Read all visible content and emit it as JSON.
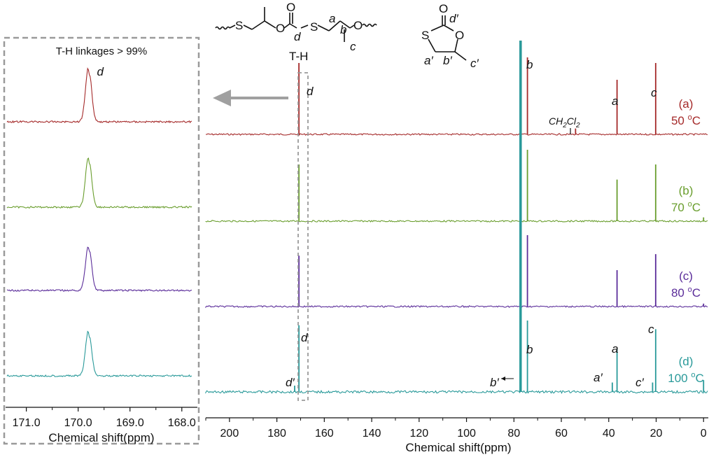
{
  "structures": {
    "chain_label": "T-H",
    "chain_atoms": {
      "s1": "S",
      "o1": "O",
      "o2": "O",
      "s2": "S",
      "o3": "O"
    },
    "chain_letters": {
      "d": "d",
      "a": "a",
      "b": "b",
      "c": "c"
    },
    "ring_atoms": {
      "o_top": "O",
      "s": "S",
      "o_ring": "O"
    },
    "ring_letters": {
      "d": "d′",
      "a": "a′",
      "b": "b′",
      "c": "c′"
    }
  },
  "chart_data": [
    {
      "type": "line",
      "panel": "main",
      "xlabel": "Chemical shift(ppm)",
      "x_reversed": true,
      "xlim": [
        210,
        -2
      ],
      "x_ticks": [
        200,
        180,
        160,
        140,
        120,
        100,
        80,
        60,
        40,
        20,
        0
      ],
      "series": [
        {
          "name": "(a)",
          "temperature": "50 ",
          "unit": "C",
          "color": "#a52a2a",
          "peaks": [
            {
              "ppm": 170.7,
              "height": 0.85
            },
            {
              "ppm": 77.2,
              "height": 1.0
            },
            {
              "ppm": 74.3,
              "height": 1.0
            },
            {
              "ppm": 54.0,
              "height": 0.07
            },
            {
              "ppm": 36.5,
              "height": 0.65
            },
            {
              "ppm": 20.2,
              "height": 0.85
            }
          ]
        },
        {
          "name": "(b)",
          "temperature": "70 ",
          "unit": "C",
          "color": "#6a9e2e",
          "peaks": [
            {
              "ppm": 170.7,
              "height": 0.75
            },
            {
              "ppm": 77.2,
              "height": 1.0
            },
            {
              "ppm": 74.3,
              "height": 1.0
            },
            {
              "ppm": 36.5,
              "height": 0.55
            },
            {
              "ppm": 20.2,
              "height": 0.75
            },
            {
              "ppm": 0.0,
              "height": 0.05
            }
          ]
        },
        {
          "name": "(c)",
          "temperature": "80 ",
          "unit": "C",
          "color": "#5b2d9a",
          "peaks": [
            {
              "ppm": 170.7,
              "height": 0.7
            },
            {
              "ppm": 77.2,
              "height": 1.0
            },
            {
              "ppm": 74.3,
              "height": 1.0
            },
            {
              "ppm": 36.5,
              "height": 0.5
            },
            {
              "ppm": 20.2,
              "height": 0.72
            },
            {
              "ppm": 0.0,
              "height": 0.04
            }
          ]
        },
        {
          "name": "(d)",
          "temperature": "100 ",
          "unit": "C",
          "color": "#2a9a9a",
          "peaks": [
            {
              "ppm": 172.5,
              "height": 0.08
            },
            {
              "ppm": 170.7,
              "height": 0.85
            },
            {
              "ppm": 77.2,
              "height": 1.0
            },
            {
              "ppm": 74.3,
              "height": 1.0
            },
            {
              "ppm": 38.5,
              "height": 0.12
            },
            {
              "ppm": 36.5,
              "height": 0.55
            },
            {
              "ppm": 21.5,
              "height": 0.12
            },
            {
              "ppm": 20.2,
              "height": 0.8
            },
            {
              "ppm": 0.0,
              "height": 0.15
            }
          ]
        }
      ],
      "peak_labels": {
        "b": "b",
        "a": "a",
        "c": "c",
        "d": "d",
        "d_prime": "d′",
        "b_prime": "b′",
        "a_prime": "a′",
        "c_prime": "c′",
        "solvent_main": "CH",
        "solvent_sub1": "2",
        "solvent_cl": "Cl",
        "solvent_sub2": "2"
      }
    },
    {
      "type": "line",
      "panel": "inset",
      "title": "T-H linkages > 99%",
      "xlabel": "Chemical shift(ppm)",
      "x_reversed": true,
      "xlim": [
        171.4,
        167.7
      ],
      "x_ticks": [
        171.0,
        170.0,
        169.0,
        168.0
      ],
      "x_tick_labels": [
        "171.0",
        "170.0",
        "169.0",
        "168.0"
      ],
      "peak_center": 169.8,
      "peak_label": "d",
      "series_colors": [
        "#a52a2a",
        "#6a9e2e",
        "#5b2d9a",
        "#2a9a9a"
      ]
    }
  ]
}
